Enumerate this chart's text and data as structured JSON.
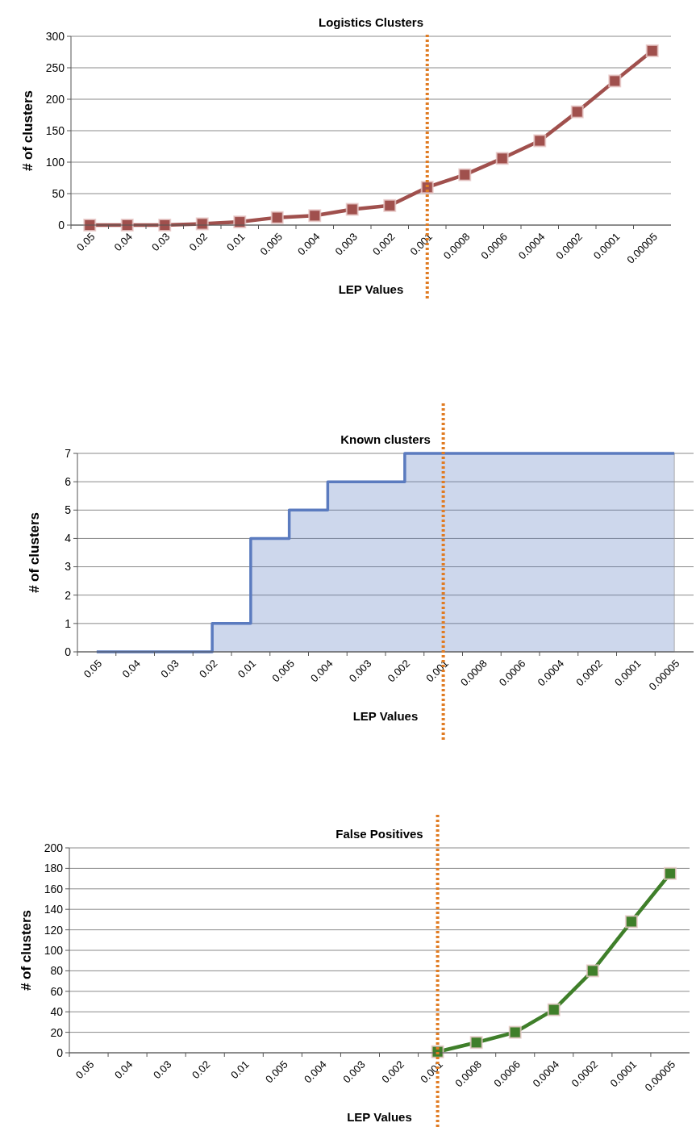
{
  "chart_data": [
    {
      "type": "line",
      "title": "Logistics Clusters",
      "xlabel": "LEP Values",
      "ylabel": "# of clusters",
      "categories": [
        "0.05",
        "0.04",
        "0.03",
        "0.02",
        "0.01",
        "0.005",
        "0.004",
        "0.003",
        "0.002",
        "0.001",
        "0.0008",
        "0.0006",
        "0.0004",
        "0.0002",
        "0.0001",
        "0.00005"
      ],
      "series": [
        {
          "color": "#a0504d",
          "values": [
            0,
            0,
            0,
            2,
            5,
            12,
            15,
            25,
            31,
            60,
            80,
            106,
            134,
            180,
            229,
            277
          ]
        }
      ],
      "ylim": [
        0,
        300
      ],
      "yticks": [
        0,
        50,
        100,
        150,
        200,
        250,
        300
      ],
      "grid": "y",
      "marker": "square",
      "line_style": "solid",
      "ref_lines": [
        {
          "axis": "x",
          "value": "0.001",
          "color": "#e07b22",
          "line_style": "dotted"
        }
      ]
    },
    {
      "type": "step",
      "title": "Known clusters",
      "xlabel": "LEP Values",
      "ylabel": "# of clusters",
      "categories": [
        "0.05",
        "0.04",
        "0.03",
        "0.02",
        "0.01",
        "0.005",
        "0.004",
        "0.003",
        "0.002",
        "0.001",
        "0.0008",
        "0.0006",
        "0.0004",
        "0.0002",
        "0.0001",
        "0.00005"
      ],
      "series": [
        {
          "color": "#5b7bbf",
          "values": [
            0,
            0,
            0,
            1,
            4,
            5,
            6,
            6,
            7,
            7,
            7,
            7,
            7,
            7,
            7,
            7
          ]
        }
      ],
      "ylim": [
        0,
        7
      ],
      "yticks": [
        0,
        1,
        2,
        3,
        4,
        5,
        6,
        7
      ],
      "grid": "y",
      "ref_lines": [
        {
          "axis": "x",
          "value": "0.001",
          "color": "#e07b22",
          "line_style": "dotted"
        }
      ]
    },
    {
      "type": "line",
      "title": "False Positives",
      "xlabel": "LEP Values",
      "ylabel": "# of clusters",
      "categories": [
        "0.05",
        "0.04",
        "0.03",
        "0.02",
        "0.01",
        "0.005",
        "0.004",
        "0.003",
        "0.002",
        "0.001",
        "0.0008",
        "0.0006",
        "0.0004",
        "0.0002",
        "0.0001",
        "0.00005"
      ],
      "series": [
        {
          "color": "#3f7f2a",
          "values": [
            null,
            null,
            null,
            null,
            null,
            null,
            null,
            null,
            null,
            1,
            10,
            20,
            42,
            80,
            128,
            175
          ]
        }
      ],
      "ylim": [
        0,
        200
      ],
      "yticks": [
        0,
        20,
        40,
        60,
        80,
        100,
        120,
        140,
        160,
        180,
        200
      ],
      "grid": "y",
      "marker": "square",
      "line_style": "solid",
      "ref_lines": [
        {
          "axis": "x",
          "value": "0.001",
          "color": "#e07b22",
          "line_style": "dotted"
        }
      ]
    }
  ]
}
